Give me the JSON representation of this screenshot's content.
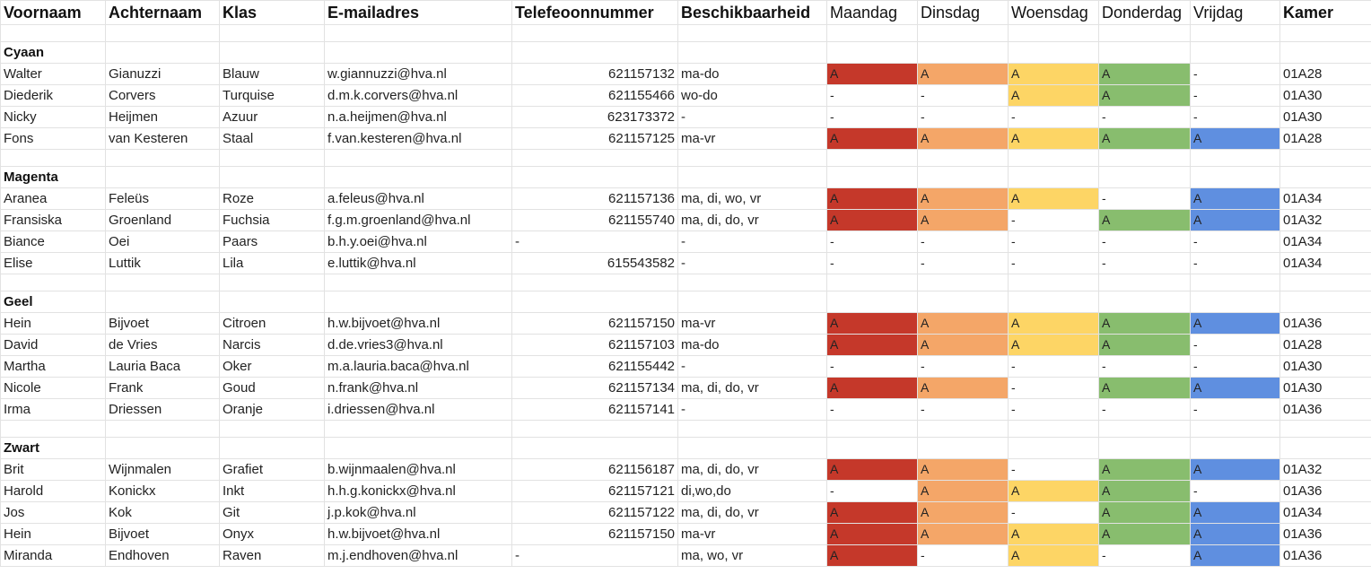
{
  "header": {
    "voornaam": "Voornaam",
    "achternaam": "Achternaam",
    "klas": "Klas",
    "email": "E-mailadres",
    "telefoon": "Telefeoonnummer",
    "beschikbaarheid": "Beschikbaarheid",
    "maandag": "Maandag",
    "dinsdag": "Dinsdag",
    "woensdag": "Woensdag",
    "donderdag": "Donderdag",
    "vrijdag": "Vrijdag",
    "kamer": "Kamer"
  },
  "colors": {
    "maandag": "#c5382a",
    "dinsdag": "#f4a668",
    "woensdag": "#fdd565",
    "donderdag": "#88bd6e",
    "vrijdag": "#5f8fe0"
  },
  "groups": [
    {
      "name": "Cyaan",
      "rows": [
        [
          "Walter",
          "Gianuzzi",
          "Blauw",
          "w.giannuzzi@hva.nl",
          "621157132",
          "ma-do",
          "A",
          "A",
          "A",
          "A",
          "-",
          "01A28"
        ],
        [
          "Diederik",
          "Corvers",
          "Turquise",
          "d.m.k.corvers@hva.nl",
          "621155466",
          "wo-do",
          "-",
          "-",
          "A",
          "A",
          "-",
          "01A30"
        ],
        [
          "Nicky",
          "Heijmen",
          "Azuur",
          "n.a.heijmen@hva.nl",
          "623173372",
          "-",
          "-",
          "-",
          "-",
          "-",
          "-",
          "01A30"
        ],
        [
          "Fons",
          "van Kesteren",
          "Staal",
          "f.van.kesteren@hva.nl",
          "621157125",
          "ma-vr",
          "A",
          "A",
          "A",
          "A",
          "A",
          "01A28"
        ]
      ]
    },
    {
      "name": "Magenta",
      "rows": [
        [
          "Aranea",
          "Feleüs",
          "Roze",
          "a.feleus@hva.nl",
          "621157136",
          "ma, di, wo, vr",
          "A",
          "A",
          "A",
          "-",
          "A",
          "01A34"
        ],
        [
          "Fransiska",
          "Groenland",
          "Fuchsia",
          "f.g.m.groenland@hva.nl",
          "621155740",
          "ma, di, do, vr",
          "A",
          "A",
          "-",
          "A",
          "A",
          "01A32"
        ],
        [
          "Biance",
          "Oei",
          "Paars",
          "b.h.y.oei@hva.nl",
          "-",
          "-",
          "-",
          "-",
          "-",
          "-",
          "-",
          "01A34"
        ],
        [
          "Elise",
          "Luttik",
          "Lila",
          "e.luttik@hva.nl",
          "615543582",
          "-",
          "-",
          "-",
          "-",
          "-",
          "-",
          "01A34"
        ]
      ]
    },
    {
      "name": "Geel",
      "rows": [
        [
          "Hein",
          "Bijvoet",
          "Citroen",
          "h.w.bijvoet@hva.nl",
          "621157150",
          "ma-vr",
          "A",
          "A",
          "A",
          "A",
          "A",
          "01A36"
        ],
        [
          "David",
          "de Vries",
          "Narcis",
          "d.de.vries3@hva.nl",
          "621157103",
          "ma-do",
          "A",
          "A",
          "A",
          "A",
          "-",
          "01A28"
        ],
        [
          "Martha",
          "Lauria Baca",
          "Oker",
          "m.a.lauria.baca@hva.nl",
          "621155442",
          "-",
          "-",
          "-",
          "-",
          "-",
          "-",
          "01A30"
        ],
        [
          "Nicole",
          "Frank",
          "Goud",
          "n.frank@hva.nl",
          "621157134",
          "ma, di, do, vr",
          "A",
          "A",
          "-",
          "A",
          "A",
          "01A30"
        ],
        [
          "Irma",
          "Driessen",
          "Oranje",
          "i.driessen@hva.nl",
          "621157141",
          "-",
          "-",
          "-",
          "-",
          "-",
          "-",
          "01A36"
        ]
      ]
    },
    {
      "name": "Zwart",
      "rows": [
        [
          "Brit",
          "Wijnmalen",
          "Grafiet",
          "b.wijnmaalen@hva.nl",
          "621156187",
          "ma, di, do, vr",
          "A",
          "A",
          "-",
          "A",
          "A",
          "01A32"
        ],
        [
          "Harold",
          "Konickx",
          "Inkt",
          "h.h.g.konickx@hva.nl",
          "621157121",
          "di,wo,do",
          "-",
          "A",
          "A",
          "A",
          "-",
          "01A36"
        ],
        [
          "Jos",
          "Kok",
          "Git",
          "j.p.kok@hva.nl",
          "621157122",
          "ma, di, do, vr",
          "A",
          "A",
          "-",
          "A",
          "A",
          "01A34"
        ],
        [
          "Hein",
          "Bijvoet",
          "Onyx",
          "h.w.bijvoet@hva.nl",
          "621157150",
          "ma-vr",
          "A",
          "A",
          "A",
          "A",
          "A",
          "01A36"
        ],
        [
          "Miranda",
          "Endhoven",
          "Raven",
          "m.j.endhoven@hva.nl",
          "-",
          "ma, wo, vr",
          "A",
          "-",
          "A",
          "-",
          "A",
          "01A36"
        ]
      ]
    }
  ]
}
